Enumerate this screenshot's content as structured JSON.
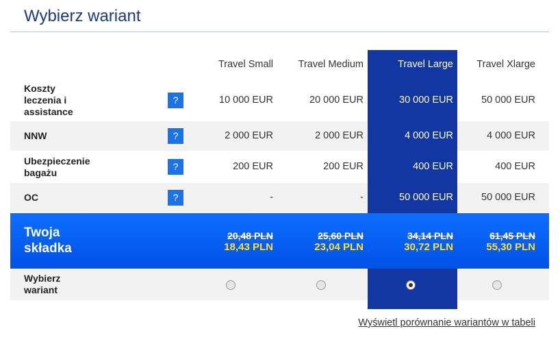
{
  "title": "Wybierz wariant",
  "variants": [
    "Travel Small",
    "Travel Medium",
    "Travel Large",
    "Travel Xlarge"
  ],
  "help_icon": "?",
  "rows": [
    {
      "label": "Koszty leczenia i assistance",
      "values": [
        "10 000 EUR",
        "20 000 EUR",
        "30 000 EUR",
        "50 000 EUR"
      ]
    },
    {
      "label": "NNW",
      "values": [
        "2 000 EUR",
        "2 000 EUR",
        "4 000 EUR",
        "4 000 EUR"
      ]
    },
    {
      "label": "Ubezpieczenie bagażu",
      "values": [
        "200 EUR",
        "200 EUR",
        "400 EUR",
        "400 EUR"
      ]
    },
    {
      "label": "OC",
      "values": [
        "-",
        "-",
        "50 000 EUR",
        "50 000 EUR"
      ]
    }
  ],
  "premium": {
    "label": "Twoja składka",
    "old_prices": [
      "20,48 PLN",
      "25,60 PLN",
      "34,14 PLN",
      "61,45 PLN"
    ],
    "new_prices": [
      "18,43 PLN",
      "23,04 PLN",
      "30,72 PLN",
      "55,30 PLN"
    ]
  },
  "choose_label": "Wybierz wariant",
  "selected": 2,
  "link": "Wyświetl porównanie wariantów w tabeli"
}
